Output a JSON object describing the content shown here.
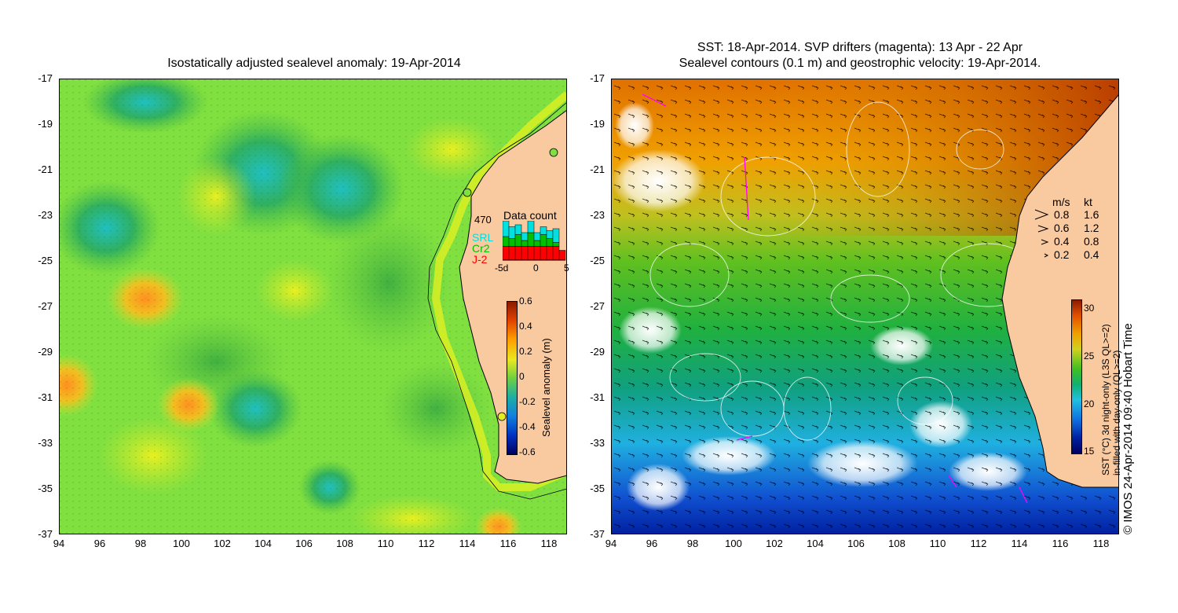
{
  "left_panel": {
    "title": "Isostatically adjusted sealevel anomaly: 19-Apr-2014",
    "y_ticks": [
      "-17",
      "-19",
      "-21",
      "-23",
      "-25",
      "-27",
      "-29",
      "-31",
      "-33",
      "-35",
      "-37"
    ],
    "x_ticks": [
      "94",
      "96",
      "98",
      "100",
      "102",
      "104",
      "106",
      "108",
      "110",
      "112",
      "114",
      "116",
      "118"
    ],
    "data_count": {
      "title": "Data count",
      "total": "470",
      "missions": [
        "SRL",
        "Cr2",
        "J-2"
      ],
      "mission_colors": [
        "#00e0e0",
        "#00c000",
        "#ff0000"
      ],
      "x_ticks": [
        "-5d",
        "0",
        "5"
      ],
      "bars": [
        {
          "j2": 0.35,
          "cr2": 0.25,
          "srl": 0.4
        },
        {
          "j2": 0.35,
          "cr2": 0.2,
          "srl": 0.3
        },
        {
          "j2": 0.35,
          "cr2": 0.3,
          "srl": 0.25
        },
        {
          "j2": 0.35,
          "cr2": 0.15,
          "srl": 0.2
        },
        {
          "j2": 0.35,
          "cr2": 0.35,
          "srl": 0.3
        },
        {
          "j2": 0.35,
          "cr2": 0.15,
          "srl": 0.2
        },
        {
          "j2": 0.35,
          "cr2": 0.3,
          "srl": 0.2
        },
        {
          "j2": 0.35,
          "cr2": 0.2,
          "srl": 0.2
        },
        {
          "j2": 0.35,
          "cr2": 0.1,
          "srl": 0.35
        },
        {
          "j2": 0.25,
          "cr2": 0.0,
          "srl": 0.0
        }
      ]
    },
    "colorbar": {
      "label": "Sealevel anomaly (m)",
      "ticks": [
        "0.6",
        "0.4",
        "0.2",
        "0",
        "-0.2",
        "-0.4",
        "-0.6"
      ],
      "range": [
        -0.6,
        0.6
      ]
    }
  },
  "right_panel": {
    "title_line1": "SST: 18-Apr-2014. SVP drifters (magenta): 13 Apr - 22 Apr",
    "title_line2": "Sealevel contours (0.1 m) and geostrophic velocity: 19-Apr-2014.",
    "y_ticks": [
      "-17",
      "-19",
      "-21",
      "-23",
      "-25",
      "-27",
      "-29",
      "-31",
      "-33",
      "-35",
      "-37"
    ],
    "x_ticks": [
      "94",
      "96",
      "98",
      "100",
      "102",
      "104",
      "106",
      "108",
      "110",
      "112",
      "114",
      "116",
      "118"
    ],
    "velocity_legend": {
      "header_ms": "m/s",
      "header_kt": "kt",
      "rows": [
        {
          "ms": "0.8",
          "kt": "1.6"
        },
        {
          "ms": "0.6",
          "kt": "1.2"
        },
        {
          "ms": "0.4",
          "kt": "0.8"
        },
        {
          "ms": "0.2",
          "kt": "0.4"
        }
      ]
    },
    "colorbar": {
      "label_line1": "SST (°C) 3d night-only (L3S QL>=2)",
      "label_line2": "in-filled with day-only (QL>=2)",
      "ticks": [
        "30",
        "25",
        "20",
        "15"
      ],
      "range": [
        15,
        31
      ]
    },
    "credit": "© IMOS 24-Apr-2014 09:40 Hobart Time"
  },
  "colors": {
    "land": "#f9c9a0",
    "coast": "#000000",
    "sla_background": "#80e040",
    "contour": "#ffffff",
    "drifter": "#ff00ff"
  }
}
